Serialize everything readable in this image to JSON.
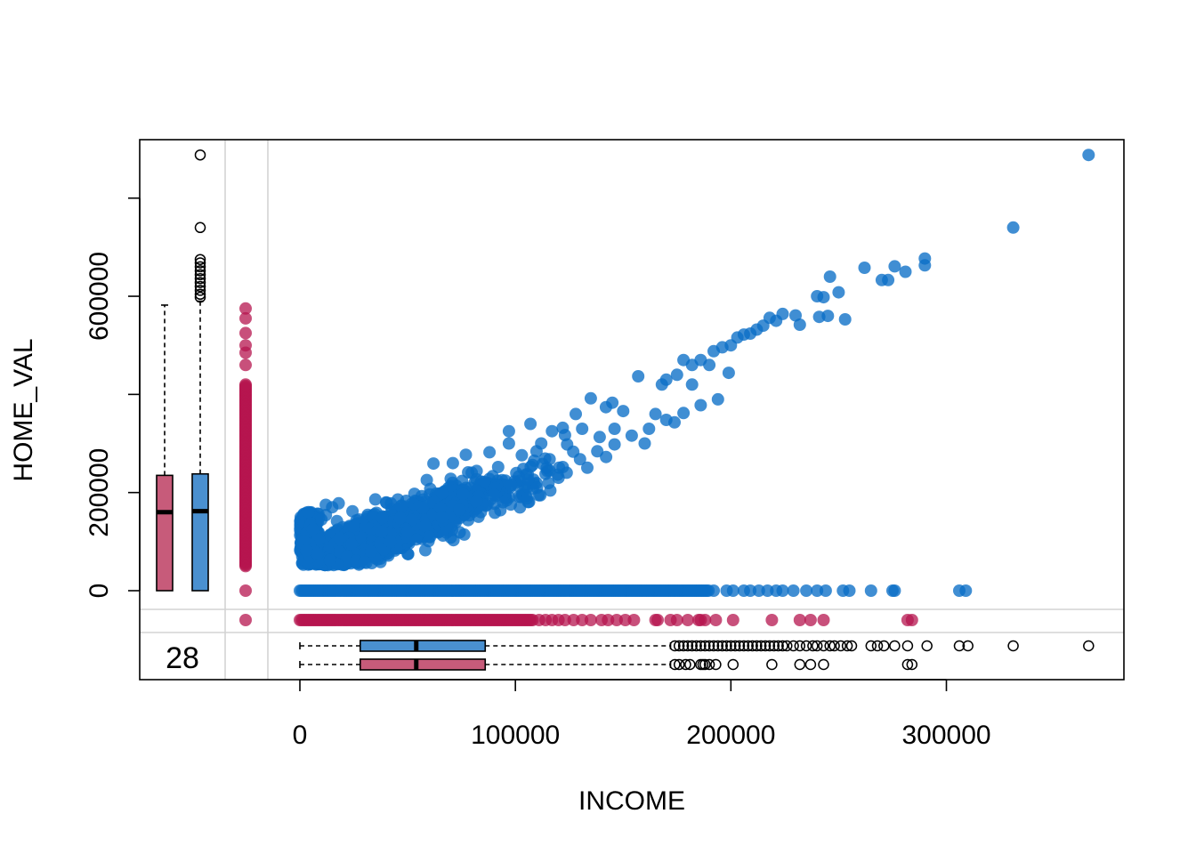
{
  "chart_data": {
    "type": "scatter",
    "title": "",
    "xlabel": "INCOME",
    "ylabel": "HOME_VAL",
    "xlim": [
      -74000,
      382000
    ],
    "ylim": [
      -183000,
      900000
    ],
    "x_ticks": [
      0,
      100000,
      200000,
      300000
    ],
    "x_tick_labels": [
      "0",
      "100000",
      "200000",
      "300000"
    ],
    "y_ticks": [
      0,
      200000,
      400000,
      600000,
      800000
    ],
    "y_tick_labels": [
      "0",
      "200000",
      "",
      "600000",
      ""
    ],
    "grid": false,
    "legend": "none",
    "colors": {
      "observed": "#0a6ec6",
      "observed_box": "#4a90d0",
      "missing": "#b5164f",
      "missing_box": "#c75b7a",
      "missing_count": "#c9627f",
      "separator": "#d3d3d3",
      "outlier": "#000000"
    },
    "missing_income_count": "28",
    "trend": {
      "intercept": 50000,
      "slope": 1.65
    },
    "series": [
      {
        "kind": "observed",
        "points": [
          [
            366000,
            888000
          ],
          [
            331000,
            740000
          ],
          [
            290000,
            677000
          ],
          [
            290000,
            663000
          ],
          [
            276000,
            661000
          ],
          [
            270000,
            633000
          ],
          [
            273000,
            633000
          ],
          [
            262000,
            658000
          ],
          [
            281000,
            650000
          ],
          [
            246000,
            640000
          ],
          [
            250000,
            608000
          ],
          [
            243000,
            598000
          ],
          [
            240000,
            600000
          ],
          [
            245000,
            560000
          ],
          [
            253000,
            553000
          ],
          [
            232000,
            542000
          ],
          [
            241000,
            558000
          ],
          [
            230000,
            561000
          ],
          [
            224000,
            564000
          ],
          [
            221000,
            550000
          ],
          [
            218000,
            556000
          ],
          [
            215000,
            540000
          ],
          [
            212000,
            532000
          ],
          [
            209000,
            524000
          ],
          [
            206000,
            522000
          ],
          [
            203000,
            516000
          ],
          [
            200000,
            500000
          ],
          [
            196000,
            496000
          ],
          [
            192000,
            488000
          ],
          [
            190000,
            460000
          ],
          [
            186000,
            470000
          ],
          [
            182000,
            460000
          ],
          [
            178000,
            470000
          ],
          [
            175000,
            440000
          ],
          [
            170000,
            430000
          ],
          [
            168000,
            420000
          ],
          [
            157000,
            437000
          ],
          [
            145000,
            383000
          ],
          [
            142000,
            374000
          ],
          [
            135000,
            392000
          ],
          [
            131000,
            330000
          ],
          [
            128000,
            360000
          ],
          [
            122000,
            332000
          ],
          [
            117000,
            325000
          ],
          [
            112000,
            300000
          ],
          [
            107000,
            340000
          ],
          [
            97000,
            325000
          ],
          [
            97000,
            300000
          ],
          [
            88000,
            282000
          ],
          [
            77000,
            277000
          ],
          [
            71000,
            260000
          ],
          [
            70000,
            228000
          ],
          [
            66000,
            199000
          ],
          [
            57000,
            169000
          ],
          [
            53000,
            176000
          ],
          [
            47000,
            172000
          ],
          [
            40000,
            180000
          ],
          [
            35000,
            186000
          ],
          [
            18000,
            178000
          ],
          [
            15000,
            170000
          ],
          [
            12000,
            175000
          ],
          [
            4000,
            160000
          ],
          [
            10000,
            145000
          ],
          [
            6000,
            125000
          ],
          [
            2000,
            100000
          ],
          [
            3000,
            82000
          ],
          [
            8000,
            75000
          ],
          [
            14000,
            62000
          ],
          [
            22000,
            70000
          ],
          [
            26000,
            61000
          ],
          [
            33000,
            80000
          ],
          [
            42000,
            100000
          ],
          [
            50000,
            120000
          ],
          [
            58000,
            132000
          ],
          [
            66000,
            150000
          ],
          [
            74000,
            165000
          ],
          [
            82000,
            182000
          ],
          [
            90000,
            196000
          ],
          [
            98000,
            215000
          ],
          [
            106000,
            226000
          ],
          [
            114000,
            238000
          ],
          [
            122000,
            252000
          ],
          [
            130000,
            268000
          ],
          [
            138000,
            284000
          ],
          [
            146000,
            298000
          ],
          [
            154000,
            316000
          ],
          [
            162000,
            330000
          ],
          [
            170000,
            348000
          ],
          [
            178000,
            362000
          ],
          [
            186000,
            378000
          ],
          [
            194000,
            390000
          ],
          [
            62000,
            259000
          ],
          [
            82000,
            244000
          ],
          [
            103000,
            276000
          ],
          [
            124000,
            298000
          ],
          [
            146000,
            330000
          ],
          [
            165000,
            360000
          ],
          [
            24000,
            95000
          ],
          [
            38000,
            120000
          ],
          [
            92000,
            252000
          ],
          [
            150000,
            366000
          ],
          [
            182000,
            420000
          ],
          [
            199000,
            444000
          ],
          [
            110000,
            210000
          ],
          [
            84000,
            160000
          ],
          [
            60000,
            110000
          ],
          [
            30000,
            58000
          ],
          [
            120000,
            230000
          ],
          [
            160000,
            300000
          ]
        ]
      },
      {
        "kind": "zero-home-value",
        "y": 0,
        "x_range": [
          0,
          190000
        ],
        "points_x": [
          192000,
          198000,
          201000,
          206000,
          209000,
          213000,
          217000,
          221000,
          224000,
          229000,
          235000,
          240000,
          244000,
          252000,
          255000,
          265000,
          275000,
          276000,
          306000,
          309000
        ]
      },
      {
        "kind": "missing-home-value",
        "x_range": [
          0,
          108000
        ],
        "points_x": [
          111000,
          114000,
          117000,
          120000,
          123000,
          127000,
          131000,
          135000,
          140000,
          143000,
          147000,
          151000,
          155000,
          165000,
          166000,
          172000,
          175000,
          180000,
          185000,
          186000,
          188000,
          193000,
          201000,
          219000,
          232000,
          237000,
          243000,
          282000,
          284000
        ]
      },
      {
        "kind": "missing-income",
        "y_range": [
          50000,
          420000
        ],
        "points_y": [
          575000,
          555000,
          525000,
          500000,
          485000,
          460000,
          0
        ]
      }
    ],
    "marginal_boxplots": {
      "income_observed": {
        "whisker_low": 0,
        "q1": 28000,
        "median": 54000,
        "q3": 86000,
        "whisker_high": 172000,
        "outliers": [
          174000,
          176000,
          178000,
          180000,
          182000,
          184000,
          186000,
          188000,
          190000,
          192000,
          194000,
          196000,
          198000,
          200000,
          202000,
          204000,
          206000,
          208000,
          210000,
          212000,
          214000,
          216000,
          218000,
          220000,
          222000,
          224000,
          226000,
          229000,
          232000,
          235000,
          238000,
          240000,
          243000,
          246000,
          248000,
          251000,
          254000,
          256000,
          265000,
          268000,
          271000,
          276000,
          282000,
          291000,
          306000,
          310000,
          331000,
          366000
        ]
      },
      "income_missing_home": {
        "whisker_low": 0,
        "q1": 28000,
        "median": 54000,
        "q3": 86000,
        "whisker_high": 172000,
        "outliers": [
          174000,
          176000,
          179000,
          181000,
          186000,
          187000,
          188000,
          190000,
          193000,
          201000,
          219000,
          232000,
          237000,
          243000,
          282000,
          284000
        ]
      },
      "home_missing_income": {
        "whisker_low": 0,
        "q1": 0,
        "median": 160000,
        "q3": 235000,
        "whisker_high": 582000,
        "outliers": []
      },
      "home_observed": {
        "whisker_low": 0,
        "q1": 0,
        "median": 162000,
        "q3": 238000,
        "whisker_high": 590000,
        "outliers": [
          888000,
          740000,
          675000,
          668000,
          660000,
          652000,
          644000,
          636000,
          628000,
          620000,
          612000,
          604000,
          598000
        ]
      }
    }
  }
}
